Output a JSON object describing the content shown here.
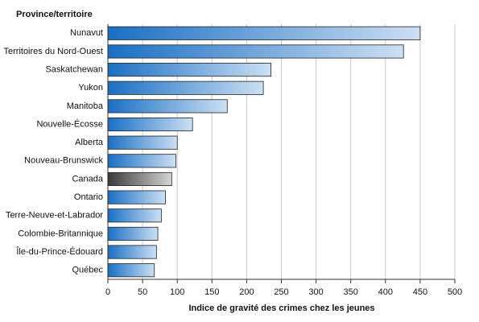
{
  "chart_data": {
    "type": "hbar",
    "y_label": "Province/territoire",
    "x_label": "Indice de gravité des crimes chez les jeunes",
    "categories": [
      "Nunavut",
      "Territoires du Nord-Ouest",
      "Saskatchewan",
      "Yukon",
      "Manitoba",
      "Nouvelle-Écosse",
      "Alberta",
      "Nouveau-Brunswick",
      "Canada",
      "Ontario",
      "Terre-Neuve-et-Labrador",
      "Colombie-Britannique",
      "Île-du-Prince-Édouard",
      "Québec"
    ],
    "values": [
      450,
      426,
      235,
      224,
      172,
      122,
      100,
      98,
      92,
      83,
      77,
      72,
      70,
      67
    ],
    "colors": [
      "#1a6fc4",
      "#1a6fc4",
      "#1a6fc4",
      "#1a6fc4",
      "#1a6fc4",
      "#1a6fc4",
      "#1a6fc4",
      "#1a6fc4",
      "#3a3a3a",
      "#1a6fc4",
      "#1a6fc4",
      "#1a6fc4",
      "#1a6fc4",
      "#1a6fc4"
    ],
    "xlim": [
      0,
      500
    ],
    "xticks": [
      0,
      50,
      100,
      150,
      200,
      250,
      300,
      350,
      400,
      450,
      500
    ],
    "grid": true
  }
}
